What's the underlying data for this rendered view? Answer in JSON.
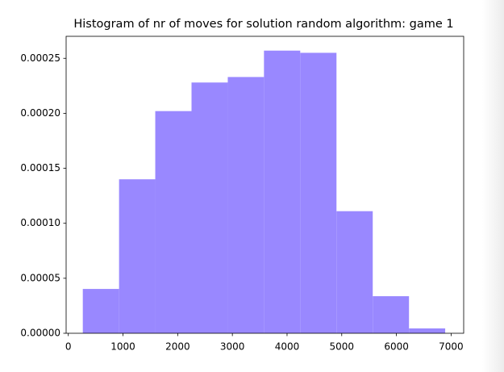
{
  "chart_data": {
    "type": "histogram",
    "title": "Histogram of nr of moves for solution random algorithm: game 1",
    "bins": [
      265,
      928,
      1590,
      2253,
      2916,
      3578,
      4241,
      4904,
      5567,
      6230,
      6892
    ],
    "values": [
      4.03e-05,
      0.00014,
      0.000202,
      0.000228,
      0.000233,
      0.000257,
      0.000255,
      0.000111,
      3.37e-05,
      4.4e-06
    ],
    "color": "#9988ff",
    "xlim": [
      -40,
      7230
    ],
    "xticks": [
      0,
      1000,
      2000,
      3000,
      4000,
      5000,
      6000,
      7000
    ],
    "ylim": [
      0,
      0.00027
    ],
    "yticks": [
      {
        "value": 0,
        "label": "0.00000"
      },
      {
        "value": 5e-05,
        "label": "0.00005"
      },
      {
        "value": 0.0001,
        "label": "0.00010"
      },
      {
        "value": 0.00015,
        "label": "0.00015"
      },
      {
        "value": 0.0002,
        "label": "0.00020"
      },
      {
        "value": 0.00025,
        "label": "0.00025"
      }
    ]
  }
}
